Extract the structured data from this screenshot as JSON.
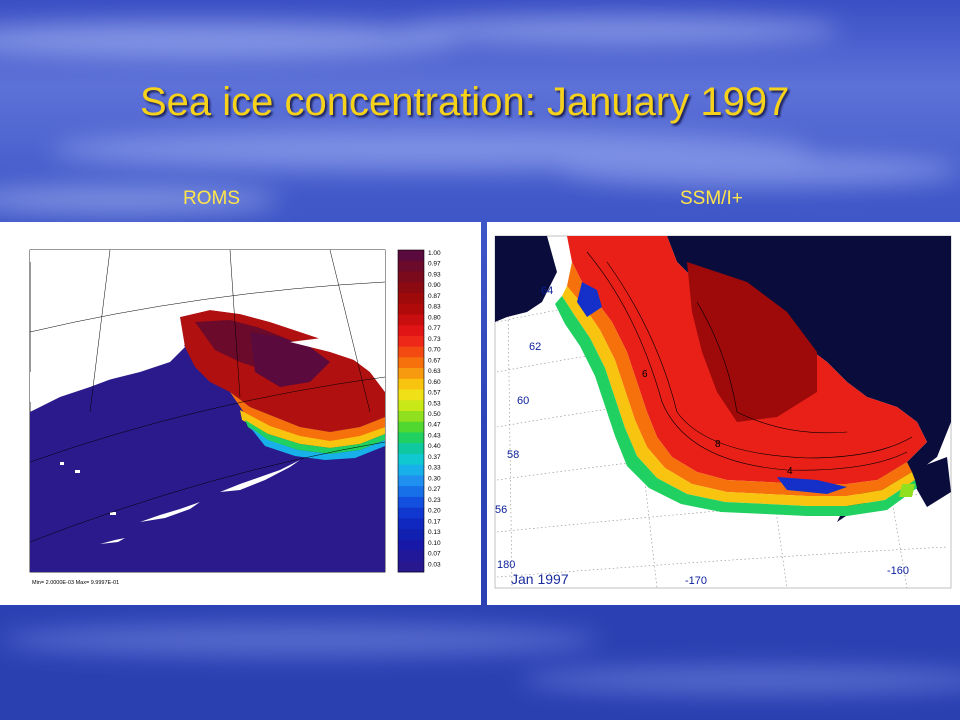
{
  "title": "Sea ice concentration: January 1997",
  "panels": {
    "left_label": "ROMS",
    "right_label": "SSM/I+"
  },
  "colorbar": {
    "ticks": [
      "1.00",
      "0.97",
      "0.93",
      "0.90",
      "0.87",
      "0.83",
      "0.80",
      "0.77",
      "0.73",
      "0.70",
      "0.67",
      "0.63",
      "0.60",
      "0.57",
      "0.53",
      "0.50",
      "0.47",
      "0.43",
      "0.40",
      "0.37",
      "0.33",
      "0.30",
      "0.27",
      "0.23",
      "0.20",
      "0.17",
      "0.13",
      "0.10",
      "0.07",
      "0.03"
    ],
    "colors": [
      "#5a0a3c",
      "#6b0a2a",
      "#7a0a1c",
      "#8c0a12",
      "#9e0a0a",
      "#b00a0a",
      "#c80e0e",
      "#e01414",
      "#ee2818",
      "#f24a10",
      "#f6700c",
      "#f89a10",
      "#f8c410",
      "#f0e018",
      "#c8e818",
      "#90e020",
      "#50d830",
      "#20d060",
      "#10c8a0",
      "#10c8d0",
      "#18b0e8",
      "#2090f0",
      "#1870e8",
      "#1450e0",
      "#1038d0",
      "#1028c0",
      "#1020b0",
      "#1818a8",
      "#201898",
      "#281890"
    ]
  },
  "roms_minmax": "Min= 2.0000E-03  Max= 9.9997E-01",
  "ssmi": {
    "lat_labels": [
      "64",
      "62",
      "60",
      "58",
      "56"
    ],
    "lon_labels": [
      "180",
      "-170",
      "-160"
    ],
    "contour_labels": [
      "6",
      "8",
      "4"
    ],
    "stamp": "Jan 1997"
  }
}
